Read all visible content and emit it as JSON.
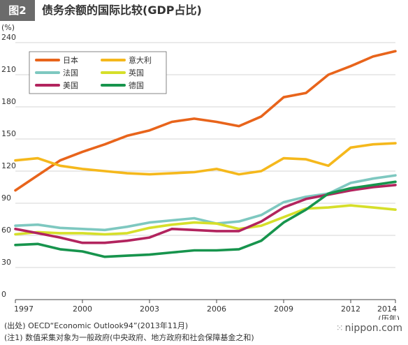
{
  "figure": {
    "badge": "图2",
    "title": "债务余额的国际比较(GDP占比)"
  },
  "notes": {
    "source": "(出处) OECD“Economic Outlook94”(2013年11月)",
    "note1": "(注1) 数值采集对象为一般政府(中央政府、地方政府和社会保障基金之和)"
  },
  "brand": {
    "icon": "nippon-dots-icon",
    "text": "nippon.com"
  },
  "chart_data": {
    "type": "line",
    "title": "债务余额的国际比较(GDP占比)",
    "ylabel": "(%)",
    "xlabel": "(历年)",
    "ylim": [
      0,
      240
    ],
    "yticks": [
      0,
      30,
      60,
      90,
      120,
      150,
      180,
      210,
      240
    ],
    "xlim": [
      1997,
      2014
    ],
    "xticks": [
      1997,
      2000,
      2003,
      2006,
      2009,
      2012,
      2014
    ],
    "grid": "horizontal",
    "legend_position": "top-left",
    "x": [
      1997,
      1998,
      1999,
      2000,
      2001,
      2002,
      2003,
      2004,
      2005,
      2006,
      2007,
      2008,
      2009,
      2010,
      2011,
      2012,
      2013,
      2014
    ],
    "series": [
      {
        "name": "日本",
        "color": "#e8641b",
        "values": [
          102,
          116,
          130,
          138,
          145,
          153,
          158,
          166,
          169,
          166,
          162,
          171,
          189,
          193,
          210,
          218,
          227,
          232
        ]
      },
      {
        "name": "意大利",
        "color": "#f5b81c",
        "values": [
          130,
          132,
          125,
          122,
          120,
          118,
          117,
          118,
          119,
          122,
          117,
          120,
          132,
          131,
          125,
          142,
          145,
          146
        ]
      },
      {
        "name": "法国",
        "color": "#7ec8c0",
        "values": [
          69,
          70,
          67,
          66,
          65,
          68,
          72,
          74,
          76,
          71,
          73,
          79,
          91,
          96,
          99,
          109,
          113,
          116
        ]
      },
      {
        "name": "英国",
        "color": "#d6df2a",
        "values": [
          61,
          63,
          62,
          62,
          61,
          62,
          67,
          70,
          72,
          71,
          66,
          69,
          77,
          85,
          86,
          88,
          86,
          84
        ]
      },
      {
        "name": "美国",
        "color": "#b2245e",
        "values": [
          66,
          62,
          58,
          53,
          53,
          55,
          58,
          66,
          65,
          64,
          64,
          73,
          86,
          94,
          98,
          102,
          105,
          107
        ]
      },
      {
        "name": "德国",
        "color": "#17944d",
        "values": [
          51,
          52,
          47,
          45,
          40,
          41,
          42,
          44,
          46,
          46,
          47,
          55,
          72,
          84,
          99,
          104,
          107,
          110
        ]
      }
    ]
  }
}
